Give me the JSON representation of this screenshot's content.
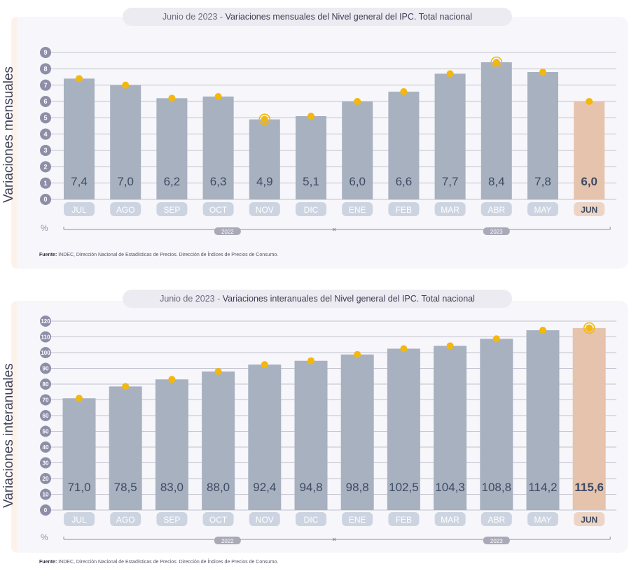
{
  "chart_data": [
    {
      "type": "bar",
      "title_prefix": "Junio de 2023 - ",
      "title_main": "Variaciones mensuales del Nivel general del IPC. Total nacional",
      "ylabel": "Variaciones mensuales",
      "unit": "%",
      "categories": [
        "JUL",
        "AGO",
        "SEP",
        "OCT",
        "NOV",
        "DIC",
        "ENE",
        "FEB",
        "MAR",
        "ABR",
        "MAY",
        "JUN"
      ],
      "values": [
        7.4,
        7.0,
        6.2,
        6.3,
        4.9,
        5.1,
        6.0,
        6.6,
        7.7,
        8.4,
        7.8,
        6.0
      ],
      "value_labels": [
        "7,4",
        "7,0",
        "6,2",
        "6,3",
        "4,9",
        "5,1",
        "6,0",
        "6,6",
        "7,7",
        "8,4",
        "7,8",
        "6,0"
      ],
      "highlight_index": 11,
      "ringed_points": [
        "NOV",
        "ABR"
      ],
      "yticks": [
        0,
        1,
        2,
        3,
        4,
        5,
        6,
        7,
        8,
        9
      ],
      "ylim": [
        0,
        9
      ],
      "years": [
        "2022",
        "2023"
      ],
      "grid": true,
      "source_label": "Fuente:",
      "source_text": "INDEC, Dirección Nacional de Estadísticas de Precios. Dirección de Índices de Precios de Consumo.",
      "colors": {
        "bar": "#a7b1c0",
        "highlight": "#e6c3ad",
        "dot": "#f2b80f"
      }
    },
    {
      "type": "bar",
      "title_prefix": "Junio de 2023 - ",
      "title_main": "Variaciones interanuales del Nivel general del IPC. Total nacional",
      "ylabel": "Variaciones interanuales",
      "unit": "%",
      "categories": [
        "JUL",
        "AGO",
        "SEP",
        "OCT",
        "NOV",
        "DIC",
        "ENE",
        "FEB",
        "MAR",
        "ABR",
        "MAY",
        "JUN"
      ],
      "values": [
        71.0,
        78.5,
        83.0,
        88.0,
        92.4,
        94.8,
        98.8,
        102.5,
        104.3,
        108.8,
        114.2,
        115.6
      ],
      "value_labels": [
        "71,0",
        "78,5",
        "83,0",
        "88,0",
        "92,4",
        "94,8",
        "98,8",
        "102,5",
        "104,3",
        "108,8",
        "114,2",
        "115,6"
      ],
      "highlight_index": 11,
      "ringed_points": [
        "JUN"
      ],
      "yticks": [
        0,
        10,
        20,
        30,
        40,
        50,
        60,
        70,
        80,
        90,
        100,
        110,
        120
      ],
      "ylim": [
        0,
        120
      ],
      "years": [
        "2022",
        "2023"
      ],
      "grid": true,
      "source_label": "Fuente:",
      "source_text": "INDEC, Dirección Nacional de Estadísticas de Precios. Dirección de Índices de Precios de Consumo.",
      "colors": {
        "bar": "#a7b1c0",
        "highlight": "#e6c3ad",
        "dot": "#f2b80f"
      }
    }
  ]
}
